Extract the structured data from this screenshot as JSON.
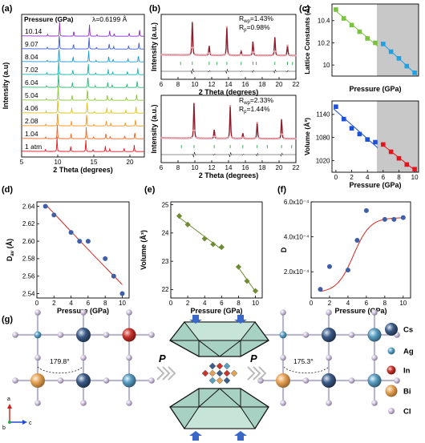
{
  "panels": {
    "a": "(a)",
    "b": "(b)",
    "c": "(c)",
    "d": "(d)",
    "e": "(e)",
    "f": "(f)",
    "g": "(g)"
  },
  "chart_data": [
    {
      "id": "a",
      "type": "line",
      "title": "",
      "xlabel": "2 Theta (degrees)",
      "ylabel": "Intensity (a.u)",
      "xlim": [
        5,
        22
      ],
      "xticks": [
        5,
        10,
        15,
        20
      ],
      "legend_title": "Pressure (GPa)",
      "annotation": "λ=0.6199 Å",
      "series": [
        {
          "name": "1 atm",
          "color": "#e8141c"
        },
        {
          "name": "1.04",
          "color": "#f26522"
        },
        {
          "name": "2.08",
          "color": "#f7941d"
        },
        {
          "name": "4.06",
          "color": "#d9c21a"
        },
        {
          "name": "5.04",
          "color": "#8cc63f"
        },
        {
          "name": "6.04",
          "color": "#2bb673"
        },
        {
          "name": "7.02",
          "color": "#17b3b3"
        },
        {
          "name": "8.04",
          "color": "#1c9ad6"
        },
        {
          "name": "9.07",
          "color": "#3a5bd9"
        },
        {
          "name": "10.14",
          "color": "#8b2ec9"
        }
      ],
      "peaks": [
        {
          "x": 8.3,
          "h": 0.12
        },
        {
          "x": 9.9,
          "h": 1.0
        },
        {
          "x": 11.8,
          "h": 0.35
        },
        {
          "x": 13.9,
          "h": 0.8
        },
        {
          "x": 14.9,
          "h": 0.12
        },
        {
          "x": 16.6,
          "h": 0.38
        },
        {
          "x": 17.2,
          "h": 0.18
        },
        {
          "x": 19.2,
          "h": 0.22
        },
        {
          "x": 20.6,
          "h": 0.45
        }
      ]
    },
    {
      "id": "b-top",
      "type": "line",
      "xlabel": "2 Theta (degrees)",
      "ylabel": "Intensity (a.u.)",
      "xlim": [
        6,
        22
      ],
      "xticks": [
        6,
        8,
        10,
        12,
        14,
        16,
        18,
        20,
        22
      ],
      "annotations": {
        "rwp_label": "R",
        "rwp_sub": "wp",
        "rwp_value": "=1.43%",
        "rp_label": "R",
        "rp_sub": "p",
        "rp_value": "=0.98%"
      },
      "peaks": [
        {
          "x": 9.7,
          "h": 1.0
        },
        {
          "x": 11.7,
          "h": 0.28
        },
        {
          "x": 13.8,
          "h": 0.85
        },
        {
          "x": 15.5,
          "h": 0.12
        },
        {
          "x": 16.9,
          "h": 0.42
        },
        {
          "x": 19.5,
          "h": 0.55
        },
        {
          "x": 21.0,
          "h": 0.3
        }
      ],
      "ticks": [
        8.3,
        9.7,
        11.7,
        12.6,
        13.8,
        15.5,
        16.9,
        17.3,
        19.5,
        21.0,
        21.6
      ]
    },
    {
      "id": "b-bottom",
      "type": "line",
      "xlabel": "2 Theta (degrees)",
      "ylabel": "Intensity (a.u.)",
      "xlim": [
        6,
        22
      ],
      "xticks": [
        6,
        8,
        10,
        12,
        14,
        16,
        18,
        20,
        22
      ],
      "annotations": {
        "rwp_label": "R",
        "rwp_sub": "wp",
        "rwp_value": "=2.33%",
        "rp_label": "R",
        "rp_sub": "p",
        "rp_value": "=1.44%"
      },
      "peaks": [
        {
          "x": 9.9,
          "h": 1.0
        },
        {
          "x": 12.3,
          "h": 0.25
        },
        {
          "x": 14.2,
          "h": 0.92
        },
        {
          "x": 15.7,
          "h": 0.15
        },
        {
          "x": 17.4,
          "h": 0.45
        },
        {
          "x": 20.3,
          "h": 0.55
        }
      ],
      "ticks": [
        8.4,
        9.9,
        12.3,
        14.2,
        15.7,
        17.4,
        18.6,
        20.3,
        21.5
      ]
    },
    {
      "id": "c-top",
      "type": "scatter",
      "xlabel": "Pressure (GPa)",
      "ylabel": "Lattice Constants (Å)",
      "xlim": [
        -0.5,
        10.5
      ],
      "ylim": [
        9.9,
        10.55
      ],
      "yticks": [
        10.0,
        10.2,
        10.4
      ],
      "shaded_from": 5.2,
      "series": [
        {
          "color": "#7cc242",
          "x": [
            0,
            1,
            2,
            3,
            4,
            5
          ],
          "y": [
            10.5,
            10.42,
            10.36,
            10.3,
            10.24,
            10.2
          ]
        },
        {
          "color": "#1ea0e6",
          "x": [
            6,
            7,
            8,
            9,
            10
          ],
          "y": [
            10.19,
            10.12,
            10.06,
            9.99,
            9.93
          ]
        }
      ]
    },
    {
      "id": "c-bottom",
      "type": "scatter",
      "xlabel": "Pressure (GPa)",
      "ylabel": "Volume (Å³)",
      "xlim": [
        -0.5,
        10.5
      ],
      "ylim": [
        990,
        1175
      ],
      "xticks": [
        0,
        2,
        4,
        6,
        8,
        10
      ],
      "yticks": [
        1020,
        1080,
        1140
      ],
      "shaded_from": 5.2,
      "series": [
        {
          "color": "#1c50d8",
          "x": [
            0,
            1,
            2,
            3,
            4,
            5
          ],
          "y": [
            1160,
            1128,
            1104,
            1089,
            1075,
            1068
          ]
        },
        {
          "color": "#e8141c",
          "x": [
            6,
            7,
            8,
            9,
            10
          ],
          "y": [
            1062,
            1043,
            1026,
            1010,
            998
          ]
        }
      ]
    },
    {
      "id": "d",
      "type": "scatter",
      "xlabel": "Pressure (GPa)",
      "ylabel": "D",
      "ylabel_sub": "av",
      "ylabel_unit": " (Å)",
      "xlim": [
        0,
        10.8
      ],
      "ylim": [
        2.535,
        2.645
      ],
      "xticks": [
        0,
        2,
        4,
        6,
        8,
        10
      ],
      "yticks": [
        2.54,
        2.56,
        2.58,
        2.6,
        2.62,
        2.64
      ],
      "ytick_labels": [
        "2.54",
        "2.56",
        "2.58",
        "2.60",
        "2.62",
        "2.64"
      ],
      "color": "#3e5fa8",
      "x": [
        1,
        2,
        4,
        5,
        6,
        8,
        9,
        10
      ],
      "y": [
        2.64,
        2.63,
        2.61,
        2.6,
        2.6,
        2.58,
        2.56,
        2.54
      ]
    },
    {
      "id": "e",
      "type": "scatter",
      "xlabel": "Pressure (GPa)",
      "ylabel": "Volume (Å³)",
      "xlim": [
        0,
        10.8
      ],
      "ylim": [
        21.7,
        25.1
      ],
      "xticks": [
        0,
        2,
        4,
        6,
        8,
        10
      ],
      "yticks": [
        22,
        23,
        24,
        25
      ],
      "color": "#6f8c34",
      "x": [
        1,
        2,
        4,
        5,
        6,
        8,
        9,
        10
      ],
      "y": [
        24.6,
        24.3,
        23.8,
        23.6,
        23.5,
        22.8,
        22.3,
        21.95
      ]
    },
    {
      "id": "f",
      "type": "scatter",
      "xlabel": "Pressure (GPa)",
      "ylabel": "D",
      "xlim": [
        0,
        10.8
      ],
      "ylim": [
        5e-05,
        0.0006
      ],
      "xticks": [
        0,
        2,
        4,
        6,
        8,
        10
      ],
      "yticks": [
        0.0002,
        0.0004,
        0.0006
      ],
      "ytick_labels": [
        "2.0x10⁻⁴",
        "4.0x10⁻⁴",
        "6.0x10⁻⁴"
      ],
      "color": "#3e5fa8",
      "x": [
        1,
        2,
        4,
        5,
        6,
        8,
        9,
        10
      ],
      "y": [
        0.0001,
        0.00023,
        0.00021,
        0.00038,
        0.00055,
        0.0005,
        0.0005,
        0.00051
      ]
    }
  ],
  "structure": {
    "angle_left": "179.8°",
    "angle_right": "175.3°",
    "pressure_left": "P",
    "pressure_right": "P",
    "axis_a": "a",
    "axis_b": "b",
    "axis_c": "c",
    "legend": [
      {
        "name": "Cs",
        "color": "#3c5b86"
      },
      {
        "name": "Ag",
        "color": "#5a9fc2"
      },
      {
        "name": "In",
        "color": "#c8332c"
      },
      {
        "name": "Bi",
        "color": "#e3a155"
      },
      {
        "name": "Cl",
        "color": "#c9bcd7"
      }
    ]
  }
}
